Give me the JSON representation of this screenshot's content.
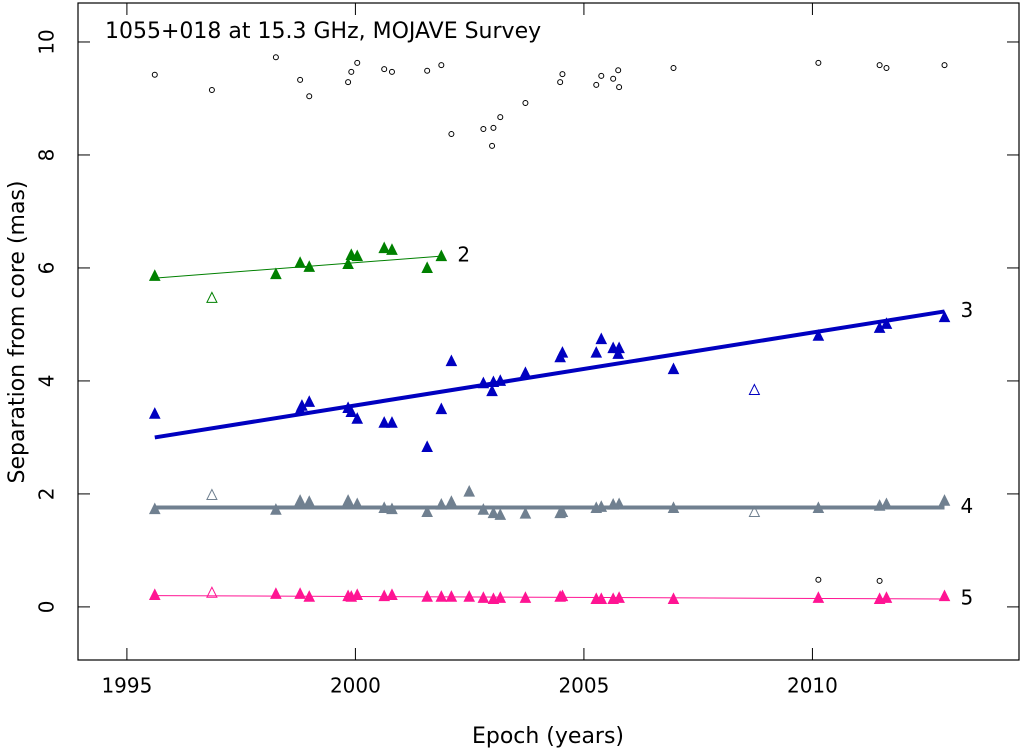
{
  "chart_data": {
    "type": "scatter",
    "title": "1055+018 at 15.3 GHz, MOJAVE Survey",
    "x_label": "Epoch (years)",
    "y_label": "Separation from core (mas)",
    "xlim": [
      1993.93,
      2014.52
    ],
    "ylim": [
      -0.94,
      10.69
    ],
    "xticks": [
      1995,
      2000,
      2005,
      2010
    ],
    "yticks": [
      0,
      2,
      4,
      6,
      8,
      10
    ],
    "series": [
      {
        "color": "#000000",
        "marker": "open-circle",
        "x": [
          1995.61,
          1996.86,
          1998.26,
          1998.79,
          1998.99,
          1999.84,
          1999.91,
          2000.04,
          2000.63,
          2000.8,
          2001.57,
          2001.88,
          2002.1,
          2002.8,
          2003.02,
          2002.99,
          2003.17,
          2003.72,
          2004.48,
          2004.53,
          2005.27,
          2005.38,
          2005.64,
          2005.75,
          2005.77,
          2006.96,
          2010.13,
          2011.47,
          2011.62,
          2012.89,
          2010.13,
          2011.47
        ],
        "y": [
          9.42,
          9.15,
          9.73,
          9.33,
          9.04,
          9.29,
          9.47,
          9.63,
          9.52,
          9.47,
          9.49,
          9.59,
          8.37,
          8.46,
          8.48,
          8.16,
          8.67,
          8.92,
          9.29,
          9.43,
          9.24,
          9.4,
          9.35,
          9.5,
          9.2,
          9.54,
          9.63,
          9.59,
          9.54,
          9.59,
          0.48,
          0.46
        ]
      },
      {
        "name": "2",
        "color": "#008000",
        "label_color": "#33bb33",
        "marker": "triangle",
        "x": [
          1995.61,
          1998.79,
          1998.26,
          1998.99,
          1999.84,
          1999.91,
          2000.04,
          2000.63,
          2000.8,
          2001.57,
          2001.88
        ],
        "y": [
          5.86,
          6.09,
          5.89,
          6.02,
          6.07,
          6.23,
          6.21,
          6.35,
          6.32,
          6.0,
          6.21
        ],
        "excluded_x": [
          1996.86
        ],
        "excluded_y": [
          5.47
        ],
        "fit_x": [
          1995.61,
          2001.88
        ],
        "fit_y": [
          5.82,
          6.21
        ],
        "fit_width": 1
      },
      {
        "name": "3",
        "color": "#0000c0",
        "label_color": "#5555ee",
        "marker": "triangle",
        "x": [
          1995.61,
          1998.79,
          1998.83,
          1998.99,
          1999.84,
          1999.91,
          2000.04,
          2000.63,
          2000.8,
          2001.57,
          2001.88,
          2002.1,
          2002.8,
          2003.02,
          2002.99,
          2003.17,
          2003.72,
          2004.48,
          2004.53,
          2005.27,
          2005.38,
          2005.64,
          2005.75,
          2005.77,
          2006.96,
          2010.13,
          2011.47,
          2011.62,
          2012.89
        ],
        "y": [
          3.42,
          3.49,
          3.56,
          3.63,
          3.52,
          3.45,
          3.33,
          3.26,
          3.26,
          2.83,
          3.5,
          4.35,
          3.96,
          3.98,
          3.82,
          4.0,
          4.14,
          4.42,
          4.5,
          4.5,
          4.74,
          4.58,
          4.48,
          4.58,
          4.21,
          4.8,
          4.94,
          5.01,
          5.13
        ],
        "excluded_x": [
          2008.73
        ],
        "excluded_y": [
          3.84
        ],
        "fit_x": [
          1995.61,
          2012.89
        ],
        "fit_y": [
          3.0,
          5.23
        ],
        "fit_width": 4
      },
      {
        "name": "4",
        "color": "#708090",
        "label_color": "#aaaaaa",
        "marker": "triangle",
        "x": [
          1995.61,
          1998.26,
          1998.79,
          1998.99,
          1999.84,
          2000.04,
          2000.63,
          2000.8,
          2001.57,
          2001.88,
          2002.1,
          2002.49,
          2002.8,
          2003.02,
          2003.17,
          2003.72,
          2004.48,
          2004.53,
          2005.27,
          2005.38,
          2005.64,
          2005.77,
          2006.96,
          2010.13,
          2011.47,
          2011.62,
          2012.89
        ],
        "y": [
          1.73,
          1.72,
          1.88,
          1.86,
          1.88,
          1.82,
          1.75,
          1.73,
          1.68,
          1.81,
          1.86,
          2.04,
          1.72,
          1.66,
          1.63,
          1.65,
          1.66,
          1.68,
          1.75,
          1.77,
          1.81,
          1.82,
          1.75,
          1.75,
          1.79,
          1.82,
          1.88
        ],
        "excluded_x": [
          1996.86,
          2008.73
        ],
        "excluded_y": [
          1.98,
          1.68
        ],
        "fit_x": [
          1995.61,
          2012.89
        ],
        "fit_y": [
          1.76,
          1.76
        ],
        "fit_width": 4
      },
      {
        "name": "5",
        "color": "#ff1493",
        "label_color": "#ff1493",
        "marker": "triangle",
        "x": [
          1995.61,
          1998.26,
          1998.79,
          1998.99,
          1999.84,
          1999.91,
          2000.04,
          2000.63,
          2000.8,
          2001.57,
          2001.88,
          2002.1,
          2002.49,
          2002.8,
          2003.02,
          2003.17,
          2003.72,
          2004.48,
          2004.53,
          2005.27,
          2005.38,
          2005.64,
          2005.77,
          2006.96,
          2010.13,
          2011.47,
          2011.62,
          2012.89
        ],
        "y": [
          0.21,
          0.23,
          0.23,
          0.18,
          0.19,
          0.18,
          0.21,
          0.19,
          0.21,
          0.18,
          0.18,
          0.18,
          0.18,
          0.16,
          0.14,
          0.16,
          0.16,
          0.18,
          0.19,
          0.14,
          0.14,
          0.14,
          0.16,
          0.14,
          0.16,
          0.14,
          0.16,
          0.19
        ],
        "excluded_x": [
          1996.86
        ],
        "excluded_y": [
          0.25
        ],
        "fit_x": [
          1995.61,
          2012.89
        ],
        "fit_y": [
          0.2,
          0.14
        ],
        "fit_width": 1
      }
    ]
  }
}
